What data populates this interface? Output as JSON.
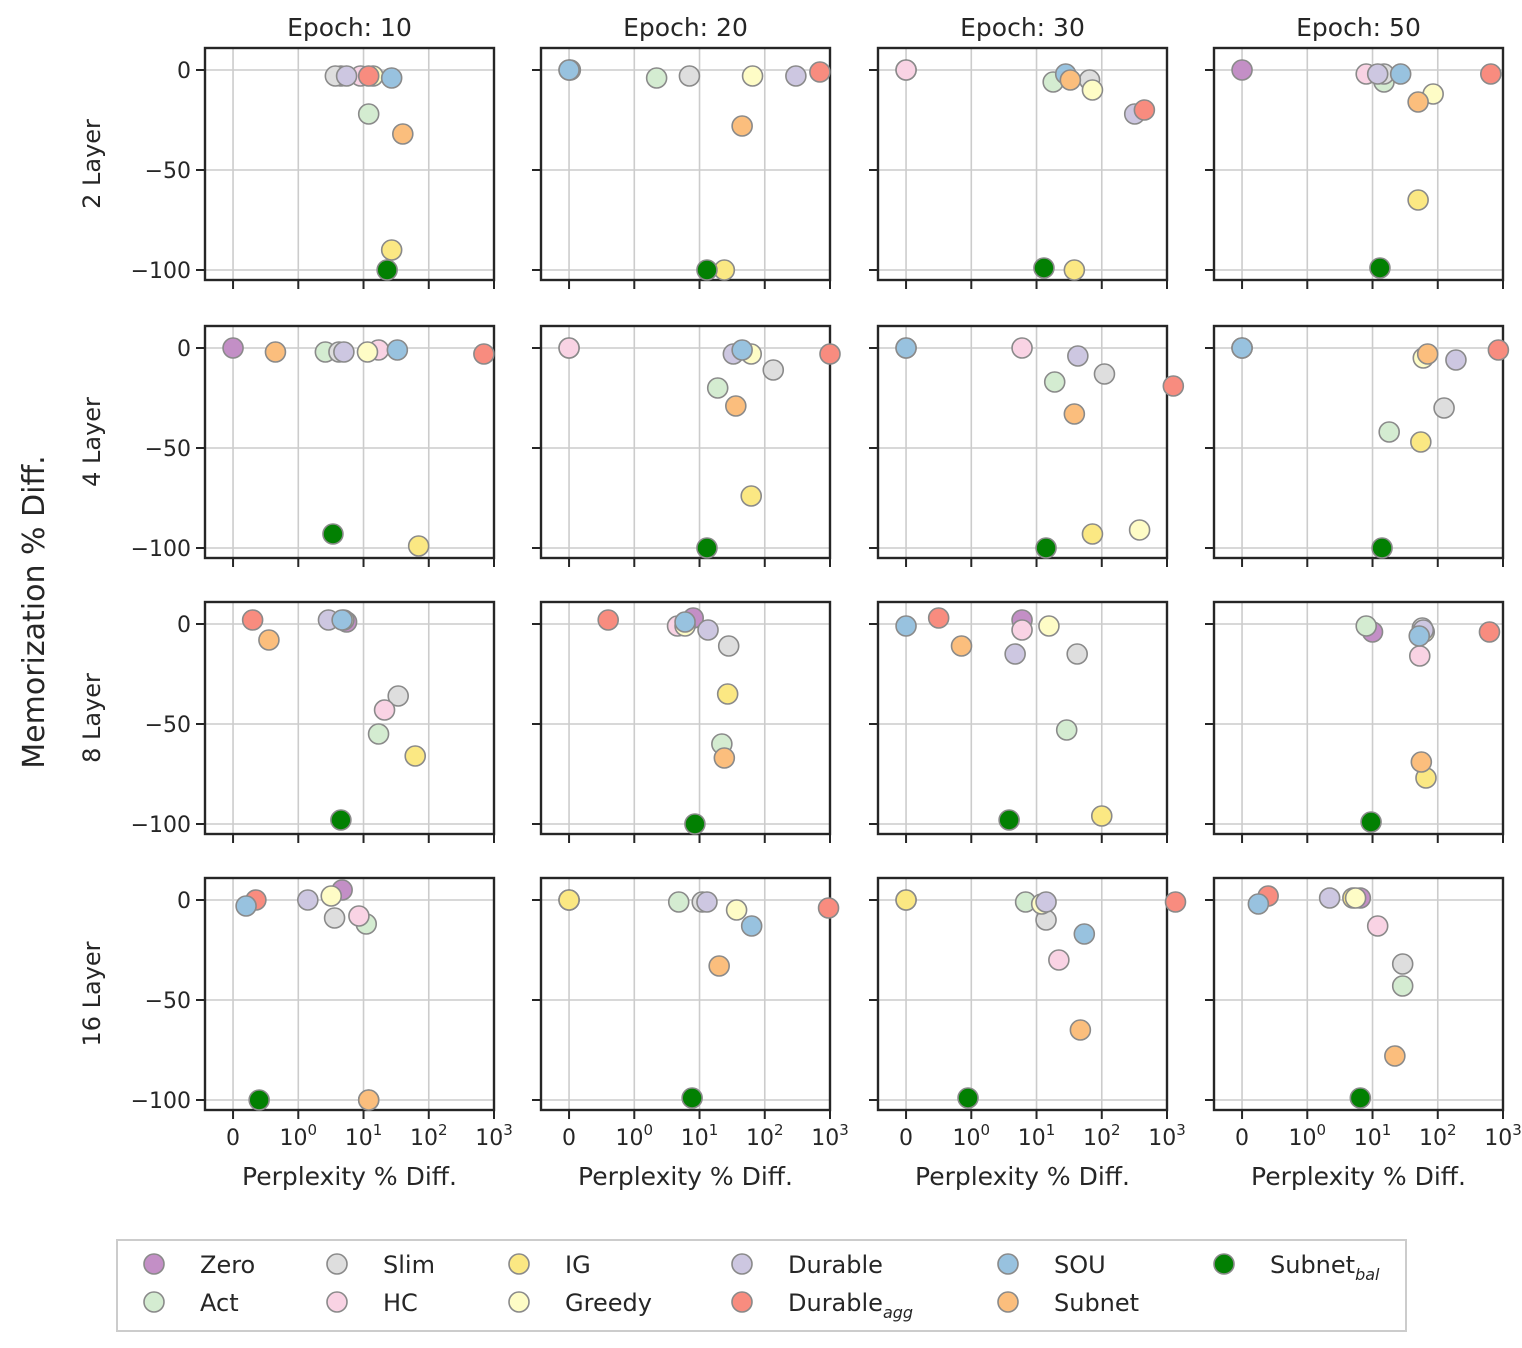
{
  "chart_data": {
    "type": "scatter",
    "xlabel": "Perplexity % Diff.",
    "ylabel": "Memorization % Diff.",
    "xscale": "symlog",
    "x_ticks": [
      0,
      1,
      10,
      100,
      1000
    ],
    "x_tick_labels": [
      {
        "base": "0",
        "exp": ""
      },
      {
        "base": "10",
        "exp": "0"
      },
      {
        "base": "10",
        "exp": "1"
      },
      {
        "base": "10",
        "exp": "2"
      },
      {
        "base": "10",
        "exp": "3"
      }
    ],
    "y_ticks": [
      0,
      -50,
      -100
    ],
    "y_tick_labels": [
      "0",
      "−50",
      "−100"
    ],
    "ylim": [
      -105,
      11
    ],
    "grid": true,
    "legend_position": "bottom",
    "col_titles": [
      "Epoch: 10",
      "Epoch: 20",
      "Epoch: 30",
      "Epoch: 50"
    ],
    "row_titles": [
      "2 Layer",
      "4 Layer",
      "8 Layer",
      "16 Layer"
    ],
    "methods": [
      {
        "key": "zero",
        "label": "Zero",
        "sub": "",
        "color": "#c38fc6"
      },
      {
        "key": "act",
        "label": "Act",
        "sub": "",
        "color": "#d4ecd1"
      },
      {
        "key": "slim",
        "label": "Slim",
        "sub": "",
        "color": "#dedede"
      },
      {
        "key": "hc",
        "label": "HC",
        "sub": "",
        "color": "#f9d3e4"
      },
      {
        "key": "ig",
        "label": "IG",
        "sub": "",
        "color": "#fbe883"
      },
      {
        "key": "greedy",
        "label": "Greedy",
        "sub": "",
        "color": "#fefcc6"
      },
      {
        "key": "durable",
        "label": "Durable",
        "sub": "",
        "color": "#cdc7e1"
      },
      {
        "key": "durable_agg",
        "label": "Durable",
        "sub": "agg",
        "color": "#f88c7f"
      },
      {
        "key": "sou",
        "label": "SOU",
        "sub": "",
        "color": "#98c2df"
      },
      {
        "key": "subnet",
        "label": "Subnet",
        "sub": "",
        "color": "#fbbe7d"
      },
      {
        "key": "subnet_bal",
        "label": "Subnet",
        "sub": "bal",
        "color": "#028002"
      }
    ],
    "panels": [
      [
        {
          "zero": [
            4.5,
            -3
          ],
          "act": [
            12,
            -22
          ],
          "slim": [
            3.7,
            -3
          ],
          "hc": [
            9,
            -3
          ],
          "ig": [
            27,
            -90
          ],
          "greedy": [
            14,
            -3
          ],
          "durable": [
            5.5,
            -3
          ],
          "durable_agg": [
            12,
            -3
          ],
          "sou": [
            27,
            -4
          ],
          "subnet": [
            40,
            -32
          ],
          "subnet_bal": [
            23,
            -100
          ]
        },
        {
          "zero": [
            0.02,
            0
          ],
          "act": [
            2.2,
            -4
          ],
          "slim": [
            7,
            -3
          ],
          "hc": [
            0.0,
            0
          ],
          "ig": [
            24,
            -100
          ],
          "greedy": [
            65,
            -3
          ],
          "durable": [
            300,
            -3
          ],
          "durable_agg": [
            700,
            -1
          ],
          "sou": [
            0.0,
            0
          ],
          "subnet": [
            45,
            -28
          ],
          "subnet_bal": [
            13,
            -100
          ]
        },
        {
          "zero": [
            0.0,
            0
          ],
          "act": [
            18,
            -6
          ],
          "slim": [
            65,
            -5
          ],
          "hc": [
            0.0,
            0
          ],
          "ig": [
            38,
            -100
          ],
          "greedy": [
            72,
            -10
          ],
          "durable": [
            320,
            -22
          ],
          "durable_agg": [
            450,
            -20
          ],
          "sou": [
            28,
            -2
          ],
          "subnet": [
            33,
            -5
          ],
          "subnet_bal": [
            13,
            -99
          ]
        },
        {
          "zero": [
            0.0,
            0
          ],
          "act": [
            15,
            -6
          ],
          "slim": [
            15,
            -2
          ],
          "hc": [
            8,
            -2
          ],
          "ig": [
            50,
            -65
          ],
          "greedy": [
            85,
            -12
          ],
          "durable": [
            12,
            -2
          ],
          "durable_agg": [
            650,
            -2
          ],
          "sou": [
            27,
            -2
          ],
          "subnet": [
            50,
            -16
          ],
          "subnet_bal": [
            13,
            -99
          ]
        }
      ],
      [
        {
          "zero": [
            0.0,
            0
          ],
          "act": [
            2.6,
            -2
          ],
          "slim": [
            4.2,
            -2
          ],
          "hc": [
            17,
            -1
          ],
          "ig": [
            70,
            -99
          ],
          "greedy": [
            11.5,
            -2
          ],
          "durable": [
            5.0,
            -2
          ],
          "durable_agg": [
            700,
            -3
          ],
          "sou": [
            33,
            -1
          ],
          "subnet": [
            0.65,
            -2
          ],
          "subnet_bal": [
            3.4,
            -93
          ]
        },
        {
          "zero": [
            0.0,
            0
          ],
          "act": [
            19,
            -20
          ],
          "slim": [
            135,
            -11
          ],
          "hc": [
            0.0,
            0
          ],
          "ig": [
            62,
            -74
          ],
          "greedy": [
            62,
            -3
          ],
          "durable": [
            33,
            -3
          ],
          "durable_agg": [
            1000,
            -3
          ],
          "sou": [
            45,
            -1
          ],
          "subnet": [
            36,
            -29
          ],
          "subnet_bal": [
            13,
            -100
          ]
        },
        {
          "zero": [
            0.0,
            0
          ],
          "act": [
            19,
            -17
          ],
          "slim": [
            110,
            -13
          ],
          "hc": [
            6,
            0
          ],
          "ig": [
            72,
            -93
          ],
          "greedy": [
            380,
            -91
          ],
          "durable": [
            43,
            -4
          ],
          "durable_agg": [
            1250,
            -19
          ],
          "sou": [
            0.0,
            0
          ],
          "subnet": [
            38,
            -33
          ],
          "subnet_bal": [
            14,
            -100
          ]
        },
        {
          "zero": [
            0.0,
            0
          ],
          "act": [
            18,
            -42
          ],
          "slim": [
            125,
            -30
          ],
          "hc": [
            0.0,
            0
          ],
          "ig": [
            55,
            -47
          ],
          "greedy": [
            60,
            -5
          ],
          "durable": [
            190,
            -6
          ],
          "durable_agg": [
            850,
            -1
          ],
          "sou": [
            0.0,
            0
          ],
          "subnet": [
            70,
            -3
          ],
          "subnet_bal": [
            14,
            -100
          ]
        }
      ],
      [
        {
          "zero": [
            5.5,
            1
          ],
          "act": [
            17,
            -55
          ],
          "slim": [
            34,
            -36
          ],
          "hc": [
            21,
            -43
          ],
          "ig": [
            62,
            -66
          ],
          "greedy": [
            5,
            2
          ],
          "durable": [
            2.9,
            2
          ],
          "durable_agg": [
            0.3,
            2
          ],
          "sou": [
            4.7,
            2
          ],
          "subnet": [
            0.55,
            -8
          ],
          "subnet_bal": [
            4.5,
            -98
          ]
        },
        {
          "zero": [
            8,
            3
          ],
          "act": [
            22,
            -60
          ],
          "slim": [
            28,
            -11
          ],
          "hc": [
            4.6,
            -1
          ],
          "ig": [
            27,
            -35
          ],
          "greedy": [
            6,
            -1
          ],
          "durable": [
            13.5,
            -3
          ],
          "durable_agg": [
            0.6,
            2
          ],
          "sou": [
            6,
            1
          ],
          "subnet": [
            24,
            -67
          ],
          "subnet_bal": [
            8.5,
            -100
          ]
        },
        {
          "zero": [
            6,
            2
          ],
          "act": [
            29,
            -53
          ],
          "slim": [
            42,
            -15
          ],
          "hc": [
            6,
            -3
          ],
          "ig": [
            100,
            -96
          ],
          "greedy": [
            15.5,
            -1
          ],
          "durable": [
            4.7,
            -15
          ],
          "durable_agg": [
            0.5,
            3
          ],
          "sou": [
            0.0,
            -1
          ],
          "subnet": [
            0.85,
            -11
          ],
          "subnet_bal": [
            3.8,
            -98
          ]
        },
        {
          "zero": [
            10,
            -4
          ],
          "act": [
            8,
            -1
          ],
          "slim": [
            58,
            -2
          ],
          "hc": [
            53,
            -16
          ],
          "ig": [
            66,
            -77
          ],
          "greedy": [
            62,
            -4
          ],
          "durable": [
            60,
            -3
          ],
          "durable_agg": [
            620,
            -4
          ],
          "sou": [
            52,
            -6
          ],
          "subnet": [
            56,
            -69
          ],
          "subnet_bal": [
            9.5,
            -99
          ]
        }
      ],
      [
        {
          "zero": [
            4.7,
            5
          ],
          "act": [
            11,
            -12
          ],
          "slim": [
            3.6,
            -9
          ],
          "hc": [
            8.5,
            -8
          ],
          "ig": [
            12,
            -100
          ],
          "greedy": [
            3.2,
            2
          ],
          "durable": [
            1.4,
            0
          ],
          "durable_agg": [
            0.35,
            0
          ],
          "sou": [
            0.2,
            -3
          ],
          "subnet": [
            12,
            -100
          ],
          "subnet_bal": [
            0.4,
            -100
          ]
        },
        {
          "zero": [
            0.0,
            0
          ],
          "act": [
            4.8,
            -1
          ],
          "slim": [
            11,
            -1
          ],
          "hc": [
            0.0,
            0
          ],
          "ig": [
            0.0,
            0
          ],
          "greedy": [
            37,
            -5
          ],
          "durable": [
            13,
            -1
          ],
          "durable_agg": [
            950,
            -4
          ],
          "sou": [
            63,
            -13
          ],
          "subnet": [
            20,
            -33
          ],
          "subnet_bal": [
            7.7,
            -99
          ]
        },
        {
          "zero": [
            0.0,
            0
          ],
          "act": [
            6.8,
            -1
          ],
          "slim": [
            14,
            -10
          ],
          "hc": [
            22,
            -30
          ],
          "ig": [
            0.0,
            0
          ],
          "greedy": [
            12,
            -2
          ],
          "durable": [
            14,
            -1
          ],
          "durable_agg": [
            1350,
            -1
          ],
          "sou": [
            54,
            -17
          ],
          "subnet": [
            47,
            -65
          ],
          "subnet_bal": [
            0.95,
            -99
          ]
        },
        {
          "zero": [
            6.5,
            1
          ],
          "act": [
            29,
            -43
          ],
          "slim": [
            29,
            -32
          ],
          "hc": [
            12,
            -13
          ],
          "ig": [
            5,
            1
          ],
          "greedy": [
            5.5,
            1
          ],
          "durable": [
            2.2,
            1
          ],
          "durable_agg": [
            0.4,
            2
          ],
          "sou": [
            0.25,
            -2
          ],
          "subnet": [
            22,
            -78
          ],
          "subnet_bal": [
            6.5,
            -99
          ]
        }
      ]
    ]
  }
}
